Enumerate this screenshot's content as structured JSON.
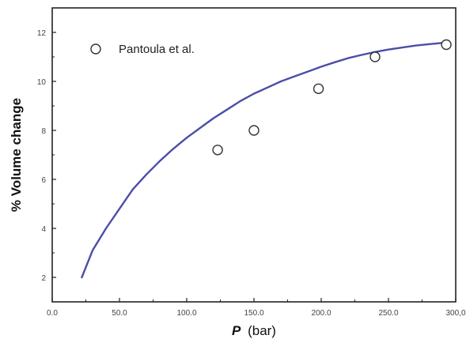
{
  "chart_data": {
    "type": "scatter",
    "title": "",
    "xlabel_symbol": "P",
    "xlabel_unit": "(bar)",
    "ylabel": "% Volume change",
    "xlim": [
      0,
      300
    ],
    "ylim": [
      1,
      13
    ],
    "x_ticks": [
      0,
      50,
      100,
      150,
      200,
      250,
      300
    ],
    "x_tick_labels": [
      "0.0",
      "50.0",
      "100.0",
      "150.0",
      "200.0",
      "250.0",
      "300,0"
    ],
    "y_ticks": [
      2,
      4,
      6,
      8,
      10,
      12
    ],
    "y_tick_labels": [
      "2",
      "4",
      "6",
      "8",
      "10",
      "12"
    ],
    "grid": false,
    "legend_position": "top-left",
    "series": [
      {
        "name": "Pantoula et al.",
        "kind": "scatter",
        "marker": "open-circle",
        "color": "#333333",
        "points": [
          {
            "x": 123,
            "y": 7.2
          },
          {
            "x": 150,
            "y": 8.0
          },
          {
            "x": 198,
            "y": 9.7
          },
          {
            "x": 240,
            "y": 11.0
          },
          {
            "x": 293,
            "y": 11.5
          }
        ]
      },
      {
        "kind": "line",
        "color": "#4a4ea8",
        "points": [
          {
            "x": 22,
            "y": 2.0
          },
          {
            "x": 30,
            "y": 3.1
          },
          {
            "x": 40,
            "y": 4.0
          },
          {
            "x": 50,
            "y": 4.8
          },
          {
            "x": 60,
            "y": 5.6
          },
          {
            "x": 70,
            "y": 6.2
          },
          {
            "x": 80,
            "y": 6.75
          },
          {
            "x": 90,
            "y": 7.25
          },
          {
            "x": 100,
            "y": 7.7
          },
          {
            "x": 110,
            "y": 8.1
          },
          {
            "x": 120,
            "y": 8.5
          },
          {
            "x": 130,
            "y": 8.85
          },
          {
            "x": 140,
            "y": 9.2
          },
          {
            "x": 150,
            "y": 9.5
          },
          {
            "x": 160,
            "y": 9.75
          },
          {
            "x": 170,
            "y": 10.0
          },
          {
            "x": 180,
            "y": 10.2
          },
          {
            "x": 190,
            "y": 10.4
          },
          {
            "x": 200,
            "y": 10.6
          },
          {
            "x": 210,
            "y": 10.78
          },
          {
            "x": 220,
            "y": 10.95
          },
          {
            "x": 230,
            "y": 11.08
          },
          {
            "x": 240,
            "y": 11.2
          },
          {
            "x": 250,
            "y": 11.3
          },
          {
            "x": 260,
            "y": 11.38
          },
          {
            "x": 270,
            "y": 11.46
          },
          {
            "x": 280,
            "y": 11.52
          },
          {
            "x": 290,
            "y": 11.57
          },
          {
            "x": 295,
            "y": 11.6
          }
        ]
      }
    ]
  }
}
